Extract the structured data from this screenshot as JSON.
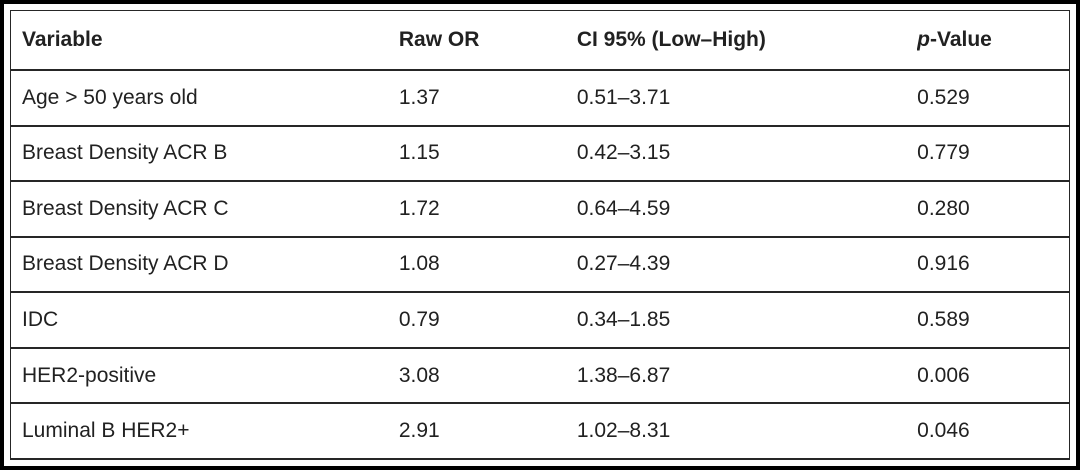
{
  "colors": {
    "frame_border": "#000000",
    "table_lines": "#262626",
    "text": "#212121",
    "background": "#ffffff"
  },
  "table": {
    "header": {
      "variable": "Variable",
      "raw_or": "Raw OR",
      "ci": "CI 95% (Low–High)",
      "p_italic": "p",
      "p_rest": "-Value"
    },
    "rows": [
      {
        "variable": "Age > 50 years old",
        "raw_or": "1.37",
        "ci": "0.51–3.71",
        "p": "0.529"
      },
      {
        "variable": "Breast Density ACR B",
        "raw_or": "1.15",
        "ci": "0.42–3.15",
        "p": "0.779"
      },
      {
        "variable": "Breast Density ACR C",
        "raw_or": "1.72",
        "ci": "0.64–4.59",
        "p": "0.280"
      },
      {
        "variable": "Breast Density ACR D",
        "raw_or": "1.08",
        "ci": "0.27–4.39",
        "p": "0.916"
      },
      {
        "variable": "IDC",
        "raw_or": "0.79",
        "ci": "0.34–1.85",
        "p": "0.589"
      },
      {
        "variable": "HER2-positive",
        "raw_or": "3.08",
        "ci": "1.38–6.87",
        "p": "0.006"
      },
      {
        "variable": "Luminal B HER2+",
        "raw_or": "2.91",
        "ci": "1.02–8.31",
        "p": "0.046"
      }
    ]
  }
}
